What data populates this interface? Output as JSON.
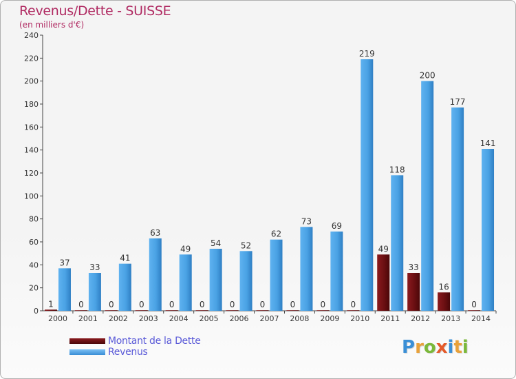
{
  "title": "Revenus/Dette - SUISSE",
  "subtitle": "(en milliers d'€)",
  "legend": {
    "dette_label": "Montant de la Dette",
    "revenus_label": "Revenus"
  },
  "logo": {
    "text": "Proxiti",
    "letter_colors": [
      "#3a8fd6",
      "#e8a13a",
      "#7bb83a",
      "#e45a2a",
      "#3a8fd6",
      "#e8a13a",
      "#7bb83a"
    ]
  },
  "colors": {
    "dette": "#6b0f12",
    "revenus": "#4da3e6",
    "axis_text": "#333333"
  },
  "chart_data": {
    "type": "bar",
    "categories": [
      "2000",
      "2001",
      "2002",
      "2003",
      "2004",
      "2005",
      "2006",
      "2007",
      "2008",
      "2009",
      "2010",
      "2011",
      "2012",
      "2013",
      "2014"
    ],
    "series": [
      {
        "name": "Montant de la Dette",
        "values": [
          1,
          0,
          0,
          0,
          0,
          0,
          0,
          0,
          0,
          0,
          0,
          49,
          33,
          16,
          0
        ]
      },
      {
        "name": "Revenus",
        "values": [
          37,
          33,
          41,
          63,
          49,
          54,
          52,
          62,
          73,
          69,
          219,
          118,
          200,
          177,
          141
        ]
      }
    ],
    "ylim": [
      0,
      240
    ],
    "yticks": [
      0,
      20,
      40,
      60,
      80,
      100,
      120,
      140,
      160,
      180,
      200,
      220,
      240
    ],
    "grid": false,
    "legend_position": "bottom-left"
  }
}
